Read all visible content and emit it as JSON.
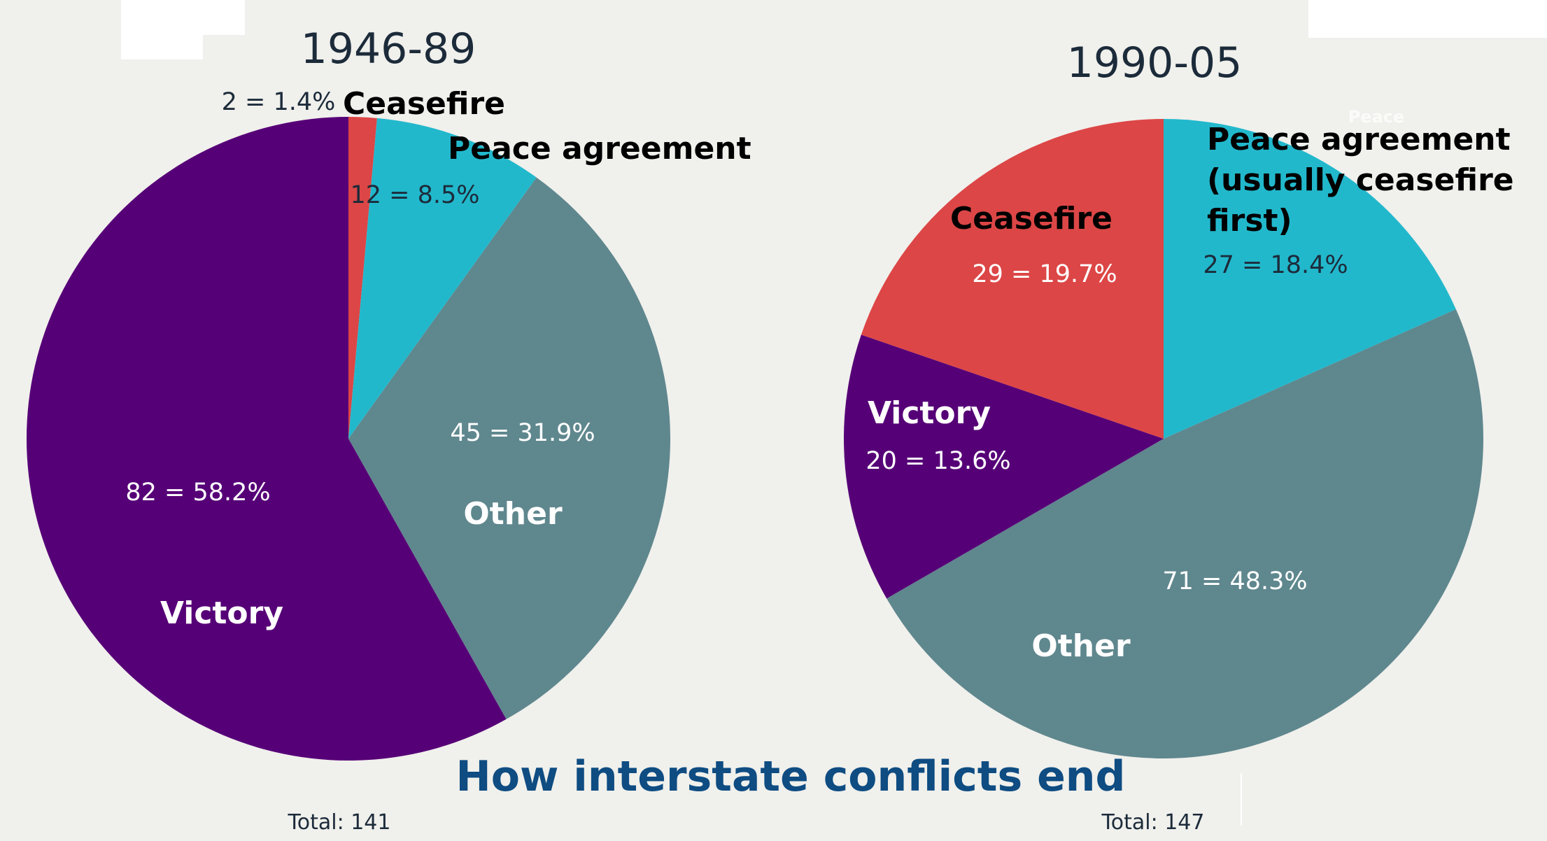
{
  "title": "How interstate conflicts end",
  "colors": {
    "ceasefire": "#dc4646",
    "peace": "#22b8cc",
    "other": "#5f878e",
    "victory": "#560077",
    "title": "#0e4c82",
    "background": "#f0f0ec"
  },
  "chart_data": [
    {
      "type": "pie",
      "title": "1946-89",
      "total_label": "Total: 141",
      "slices": [
        {
          "key": "ceasefire",
          "label": "Ceasefire",
          "count": 2,
          "percent": 1.4,
          "value_label": "2 = 1.4%"
        },
        {
          "key": "peace",
          "label": "Peace agreement",
          "count": 12,
          "percent": 8.5,
          "value_label": "12 = 8.5%"
        },
        {
          "key": "other",
          "label": "Other",
          "count": 45,
          "percent": 31.9,
          "value_label": "45 = 31.9%"
        },
        {
          "key": "victory",
          "label": "Victory",
          "count": 82,
          "percent": 58.2,
          "value_label": "82 = 58.2%"
        }
      ]
    },
    {
      "type": "pie",
      "title": "1990-05",
      "total_label": "Total: 147",
      "faint_label": "Peace",
      "slices": [
        {
          "key": "peace",
          "label": "Peace agreement (usually ceasefire first)",
          "label_lines": [
            "Peace agreement",
            "(usually ceasefire",
            "first)"
          ],
          "count": 27,
          "percent": 18.4,
          "value_label": "27 = 18.4%"
        },
        {
          "key": "other",
          "label": "Other",
          "count": 71,
          "percent": 48.3,
          "value_label": "71 = 48.3%"
        },
        {
          "key": "victory",
          "label": "Victory",
          "count": 20,
          "percent": 13.6,
          "value_label": "20 = 13.6%"
        },
        {
          "key": "ceasefire",
          "label": "Ceasefire",
          "count": 29,
          "percent": 19.7,
          "value_label": "29 = 19.7%"
        }
      ]
    }
  ]
}
